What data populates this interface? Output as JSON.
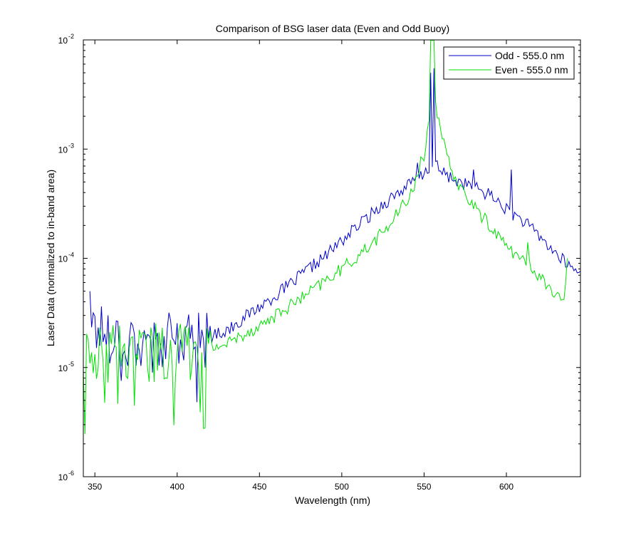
{
  "chart_data": {
    "type": "line",
    "title": "Comparison of BSG laser data (Even and Odd Buoy)",
    "xlabel": "Wavelength (nm)",
    "ylabel": "Laser Data (normalized to in-band area)",
    "xlim": [
      343,
      645
    ],
    "ylim": [
      1e-06,
      0.01
    ],
    "yscale": "log",
    "grid": false,
    "legend_position": "top-right",
    "x_ticks": [
      350,
      400,
      450,
      500,
      550,
      600
    ],
    "y_ticks": [
      {
        "value": 1e-06,
        "base": "10",
        "exp": "-6"
      },
      {
        "value": 1e-05,
        "base": "10",
        "exp": "-5"
      },
      {
        "value": 0.0001,
        "base": "10",
        "exp": "-4"
      },
      {
        "value": 0.001,
        "base": "10",
        "exp": "-3"
      },
      {
        "value": 0.01,
        "base": "10",
        "exp": "-2"
      }
    ],
    "series": [
      {
        "name": "Odd - 555.0 nm",
        "color": "#0000cc",
        "x_start": 347,
        "x_end": 645,
        "x_step": 1,
        "anchors": [
          [
            347,
            2.5e-05
          ],
          [
            360,
            2e-05
          ],
          [
            380,
            1.7e-05
          ],
          [
            400,
            1.7e-05
          ],
          [
            420,
            1.9e-05
          ],
          [
            430,
            2.2e-05
          ],
          [
            440,
            2.8e-05
          ],
          [
            450,
            3.6e-05
          ],
          [
            460,
            4.6e-05
          ],
          [
            470,
            6e-05
          ],
          [
            480,
            8e-05
          ],
          [
            490,
            0.000105
          ],
          [
            500,
            0.000145
          ],
          [
            510,
            0.0002
          ],
          [
            520,
            0.00027
          ],
          [
            530,
            0.00036
          ],
          [
            540,
            0.00046
          ],
          [
            545,
            0.00052
          ],
          [
            550,
            0.00058
          ],
          [
            552,
            0.00065
          ],
          [
            556,
            0.00075
          ],
          [
            560,
            0.00062
          ],
          [
            565,
            0.00056
          ],
          [
            570,
            0.00051
          ],
          [
            580,
            0.00045
          ],
          [
            590,
            0.00038
          ],
          [
            595,
            0.00033
          ],
          [
            600,
            0.00028
          ],
          [
            610,
            0.00022
          ],
          [
            620,
            0.00016
          ],
          [
            630,
            0.00011
          ],
          [
            640,
            8e-05
          ],
          [
            645,
            7.5e-05
          ]
        ],
        "peaks": [
          [
            347,
            5e-05
          ],
          [
            554,
            0.005
          ],
          [
            556,
            0.0055
          ],
          [
            580,
            0.00065
          ],
          [
            603,
            0.00065
          ],
          [
            546,
            0.00075
          ]
        ],
        "noise_floor": 4.5e-06,
        "noise_until": 420
      },
      {
        "name": "Even - 555.0 nm",
        "color": "#00e000",
        "x_start": 343,
        "x_end": 637,
        "x_step": 1,
        "anchors": [
          [
            343,
            1.3e-05
          ],
          [
            360,
            1.3e-05
          ],
          [
            380,
            1.35e-05
          ],
          [
            400,
            1.4e-05
          ],
          [
            420,
            1.5e-05
          ],
          [
            430,
            1.65e-05
          ],
          [
            440,
            2e-05
          ],
          [
            450,
            2.4e-05
          ],
          [
            460,
            3e-05
          ],
          [
            470,
            3.8e-05
          ],
          [
            480,
            4.8e-05
          ],
          [
            490,
            6.2e-05
          ],
          [
            500,
            8e-05
          ],
          [
            510,
            0.000105
          ],
          [
            520,
            0.000145
          ],
          [
            530,
            0.00021
          ],
          [
            540,
            0.00035
          ],
          [
            545,
            0.0005
          ],
          [
            550,
            0.00085
          ],
          [
            553,
            0.002
          ],
          [
            555,
            0.01
          ],
          [
            557,
            0.0025
          ],
          [
            560,
            0.0014
          ],
          [
            565,
            0.00075
          ],
          [
            570,
            0.0005
          ],
          [
            580,
            0.0003
          ],
          [
            590,
            0.0002
          ],
          [
            600,
            0.00013
          ],
          [
            610,
            9.5e-05
          ],
          [
            620,
            7e-05
          ],
          [
            630,
            4.5e-05
          ],
          [
            637,
            3.5e-05
          ]
        ],
        "peaks": [
          [
            548,
            0.00085
          ],
          [
            554,
            0.01
          ],
          [
            556,
            0.01
          ],
          [
            613,
            0.00014
          ],
          [
            636,
            6e-05
          ],
          [
            637,
            0.0001
          ]
        ],
        "noise_floor": 2.4e-06,
        "noise_until": 420
      }
    ]
  }
}
